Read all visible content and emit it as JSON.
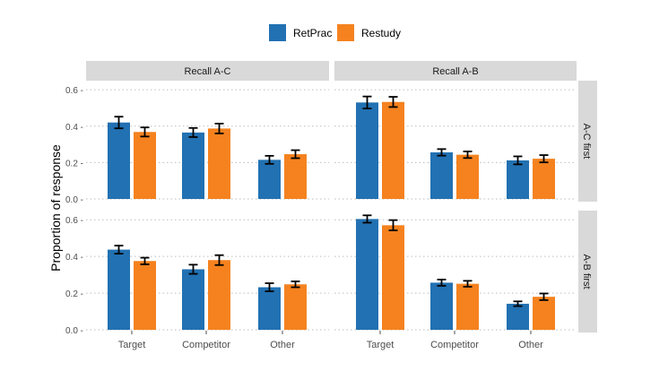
{
  "chart_data": {
    "type": "bar",
    "layout": "facet-grid",
    "ylabel": "Proportion of response",
    "xlabel": "",
    "categories": [
      "Target",
      "Competitor",
      "Other"
    ],
    "yticks": [
      0.0,
      0.2,
      0.4,
      0.6
    ],
    "ytick_labels": [
      "0.0 -",
      "0.2 -",
      "0.4 -",
      "0.6 -"
    ],
    "ylim": [
      0,
      0.64
    ],
    "legend": {
      "position": "top",
      "entries": [
        {
          "name": "RetPrac",
          "color": "#2271b2"
        },
        {
          "name": "Restudy",
          "color": "#f5821f"
        }
      ]
    },
    "col_facets": [
      "Recall A-C",
      "Recall A-B"
    ],
    "row_facets": [
      "A-C first",
      "A-B first"
    ],
    "panels": [
      {
        "col": "Recall A-C",
        "row": "A-C first",
        "series": [
          {
            "name": "RetPrac",
            "values": [
              0.42,
              0.365,
              0.215
            ],
            "err": [
              0.032,
              0.025,
              0.022
            ]
          },
          {
            "name": "Restudy",
            "values": [
              0.368,
              0.387,
              0.246
            ],
            "err": [
              0.025,
              0.027,
              0.022
            ]
          }
        ]
      },
      {
        "col": "Recall A-B",
        "row": "A-C first",
        "series": [
          {
            "name": "RetPrac",
            "values": [
              0.53,
              0.256,
              0.212
            ],
            "err": [
              0.033,
              0.018,
              0.022
            ]
          },
          {
            "name": "Restudy",
            "values": [
              0.533,
              0.243,
              0.221
            ],
            "err": [
              0.028,
              0.018,
              0.02
            ]
          }
        ]
      },
      {
        "col": "Recall A-C",
        "row": "A-B first",
        "series": [
          {
            "name": "RetPrac",
            "values": [
              0.437,
              0.33,
              0.232
            ],
            "err": [
              0.022,
              0.025,
              0.022
            ]
          },
          {
            "name": "Restudy",
            "values": [
              0.375,
              0.38,
              0.248
            ],
            "err": [
              0.018,
              0.027,
              0.016
            ]
          }
        ]
      },
      {
        "col": "Recall A-B",
        "row": "A-B first",
        "series": [
          {
            "name": "RetPrac",
            "values": [
              0.604,
              0.257,
              0.142
            ],
            "err": [
              0.02,
              0.017,
              0.013
            ]
          },
          {
            "name": "Restudy",
            "values": [
              0.57,
              0.251,
              0.18
            ],
            "err": [
              0.028,
              0.016,
              0.018
            ]
          }
        ]
      }
    ]
  }
}
